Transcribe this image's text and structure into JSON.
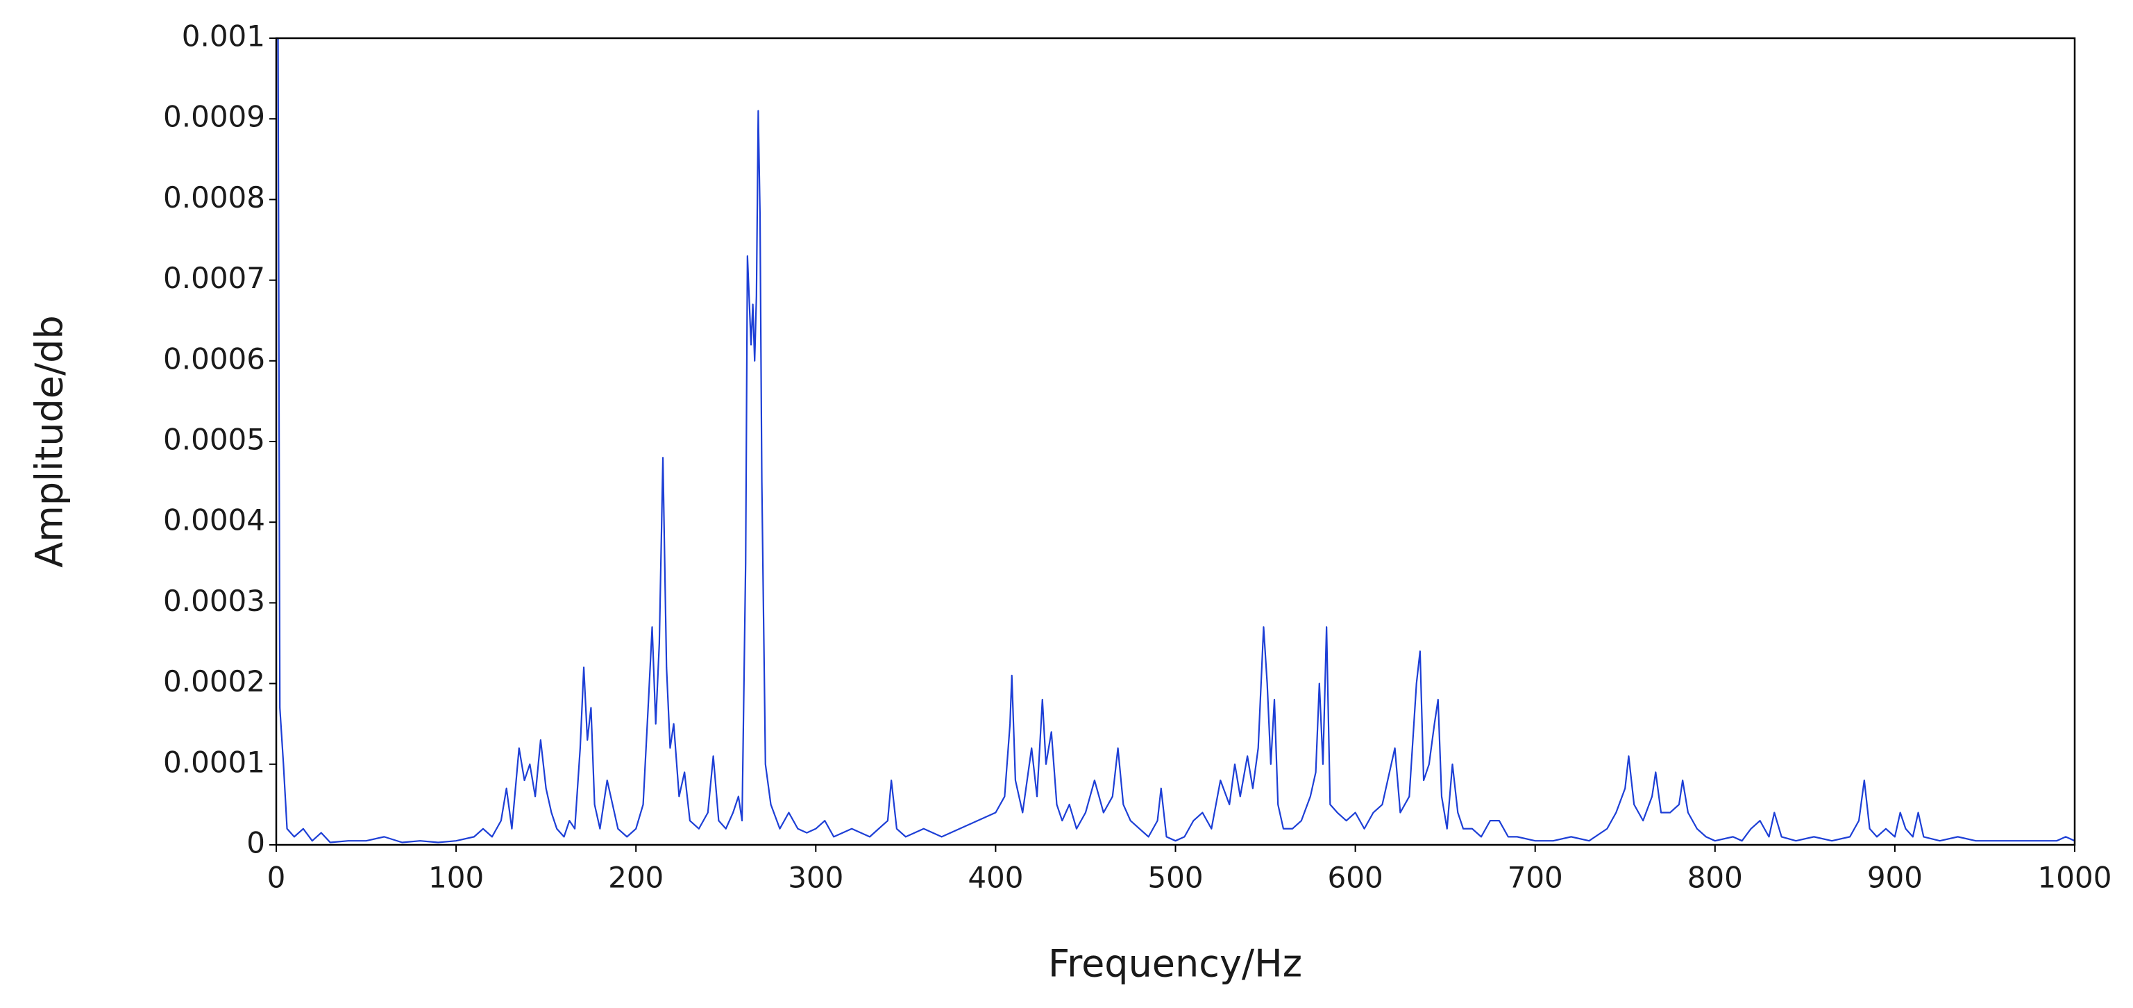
{
  "chart_data": {
    "type": "line",
    "xlabel": "Frequency/Hz",
    "ylabel": "Amplitude/db",
    "color": "#1d3fd6",
    "xlim": [
      0,
      1000
    ],
    "xticks": [
      0,
      100,
      200,
      300,
      400,
      500,
      600,
      700,
      800,
      900,
      1000
    ],
    "ylim": [
      0,
      0.001
    ],
    "yticks": [
      0,
      0.0001,
      0.0002,
      0.0003,
      0.0004,
      0.0005,
      0.0006,
      0.0007,
      0.0008,
      0.0009,
      0.001
    ],
    "x": [
      0,
      1,
      2,
      4,
      6,
      10,
      15,
      20,
      25,
      30,
      40,
      50,
      60,
      70,
      80,
      90,
      100,
      110,
      115,
      120,
      125,
      128,
      131,
      135,
      138,
      141,
      144,
      147,
      150,
      153,
      156,
      160,
      163,
      166,
      169,
      171,
      173,
      175,
      177,
      180,
      184,
      187,
      190,
      195,
      200,
      204,
      207,
      209,
      211,
      213,
      215,
      217,
      219,
      221,
      224,
      227,
      230,
      235,
      240,
      243,
      246,
      250,
      254,
      257,
      259,
      261,
      262,
      264,
      265,
      266,
      267,
      268,
      269,
      270,
      272,
      275,
      280,
      285,
      290,
      295,
      300,
      305,
      310,
      320,
      330,
      340,
      342,
      345,
      350,
      360,
      370,
      380,
      390,
      400,
      405,
      408,
      409,
      411,
      415,
      420,
      423,
      426,
      428,
      431,
      434,
      437,
      441,
      445,
      450,
      455,
      460,
      465,
      468,
      471,
      475,
      480,
      485,
      490,
      492,
      495,
      500,
      505,
      510,
      515,
      520,
      525,
      530,
      533,
      536,
      540,
      543,
      546,
      549,
      551,
      553,
      555,
      557,
      560,
      565,
      570,
      575,
      578,
      580,
      582,
      584,
      586,
      590,
      595,
      600,
      605,
      610,
      615,
      620,
      622,
      625,
      630,
      634,
      636,
      638,
      641,
      644,
      646,
      648,
      651,
      654,
      657,
      660,
      665,
      670,
      675,
      680,
      685,
      690,
      700,
      710,
      720,
      730,
      740,
      745,
      750,
      752,
      755,
      760,
      765,
      767,
      770,
      775,
      780,
      782,
      785,
      790,
      795,
      800,
      810,
      815,
      820,
      825,
      830,
      833,
      837,
      845,
      855,
      865,
      875,
      880,
      883,
      886,
      890,
      895,
      900,
      903,
      906,
      910,
      913,
      916,
      925,
      935,
      945,
      960,
      975,
      990,
      995,
      1000
    ],
    "values": [
      0.001,
      0.001,
      0.00017,
      0.0001,
      2e-05,
      1e-05,
      2e-05,
      5e-06,
      1.5e-05,
      3e-06,
      5e-06,
      5e-06,
      1e-05,
      3e-06,
      5e-06,
      3e-06,
      5e-06,
      1e-05,
      2e-05,
      1e-05,
      3e-05,
      7e-05,
      2e-05,
      0.00012,
      8e-05,
      0.0001,
      6e-05,
      0.00013,
      7e-05,
      4e-05,
      2e-05,
      1e-05,
      3e-05,
      2e-05,
      0.00012,
      0.00022,
      0.00013,
      0.00017,
      5e-05,
      2e-05,
      8e-05,
      5e-05,
      2e-05,
      1e-05,
      2e-05,
      5e-05,
      0.00018,
      0.00027,
      0.00015,
      0.00025,
      0.00048,
      0.00022,
      0.00012,
      0.00015,
      6e-05,
      9e-05,
      3e-05,
      2e-05,
      4e-05,
      0.00011,
      3e-05,
      2e-05,
      4e-05,
      6e-05,
      3e-05,
      0.00035,
      0.00073,
      0.00062,
      0.00067,
      0.0006,
      0.00068,
      0.00091,
      0.00078,
      0.00045,
      0.0001,
      5e-05,
      2e-05,
      4e-05,
      2e-05,
      1.5e-05,
      2e-05,
      3e-05,
      1e-05,
      2e-05,
      1e-05,
      3e-05,
      8e-05,
      2e-05,
      1e-05,
      2e-05,
      1e-05,
      2e-05,
      3e-05,
      4e-05,
      6e-05,
      0.00015,
      0.00021,
      8e-05,
      4e-05,
      0.00012,
      6e-05,
      0.00018,
      0.0001,
      0.00014,
      5e-05,
      3e-05,
      5e-05,
      2e-05,
      4e-05,
      8e-05,
      4e-05,
      6e-05,
      0.00012,
      5e-05,
      3e-05,
      2e-05,
      1e-05,
      3e-05,
      7e-05,
      1e-05,
      5e-06,
      1e-05,
      3e-05,
      4e-05,
      2e-05,
      8e-05,
      5e-05,
      0.0001,
      6e-05,
      0.00011,
      7e-05,
      0.00012,
      0.00027,
      0.0002,
      0.0001,
      0.00018,
      5e-05,
      2e-05,
      2e-05,
      3e-05,
      6e-05,
      9e-05,
      0.0002,
      0.0001,
      0.00027,
      5e-05,
      4e-05,
      3e-05,
      4e-05,
      2e-05,
      4e-05,
      5e-05,
      0.0001,
      0.00012,
      4e-05,
      6e-05,
      0.0002,
      0.00024,
      8e-05,
      0.0001,
      0.00015,
      0.00018,
      6e-05,
      2e-05,
      0.0001,
      4e-05,
      2e-05,
      2e-05,
      1e-05,
      3e-05,
      3e-05,
      1e-05,
      1e-05,
      5e-06,
      5e-06,
      1e-05,
      5e-06,
      2e-05,
      4e-05,
      7e-05,
      0.00011,
      5e-05,
      3e-05,
      6e-05,
      9e-05,
      4e-05,
      4e-05,
      5e-05,
      8e-05,
      4e-05,
      2e-05,
      1e-05,
      5e-06,
      1e-05,
      5e-06,
      2e-05,
      3e-05,
      1e-05,
      4e-05,
      1e-05,
      5e-06,
      1e-05,
      5e-06,
      1e-05,
      3e-05,
      8e-05,
      2e-05,
      1e-05,
      2e-05,
      1e-05,
      4e-05,
      2e-05,
      1e-05,
      4e-05,
      1e-05,
      5e-06,
      1e-05,
      5e-06,
      5e-06,
      5e-06,
      5e-06,
      1e-05,
      5e-06
    ]
  }
}
